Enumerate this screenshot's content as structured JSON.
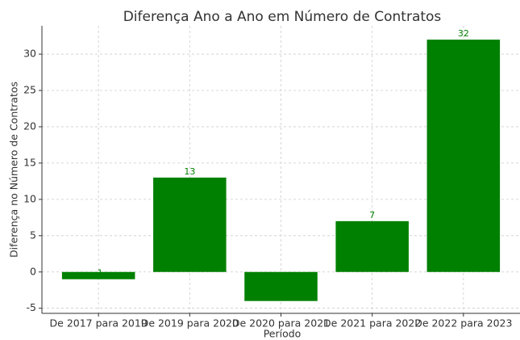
{
  "chart_data": {
    "type": "bar",
    "title": "Diferença Ano a Ano em Número de Contratos",
    "x_label": "Período",
    "y_label": "Diferença no Número de Contratos",
    "categories": [
      "De 2017 para 2019",
      "De 2019 para 2020",
      "De 2020 para 2021",
      "De 2021 para 2022",
      "De 2022 para 2023"
    ],
    "values": [
      -1,
      13,
      -4,
      7,
      32
    ],
    "color": "#008000",
    "ylim": [
      -5.7,
      33.9
    ],
    "yticks": [
      -5,
      0,
      5,
      10,
      15,
      20,
      25,
      30
    ],
    "grid": true
  }
}
